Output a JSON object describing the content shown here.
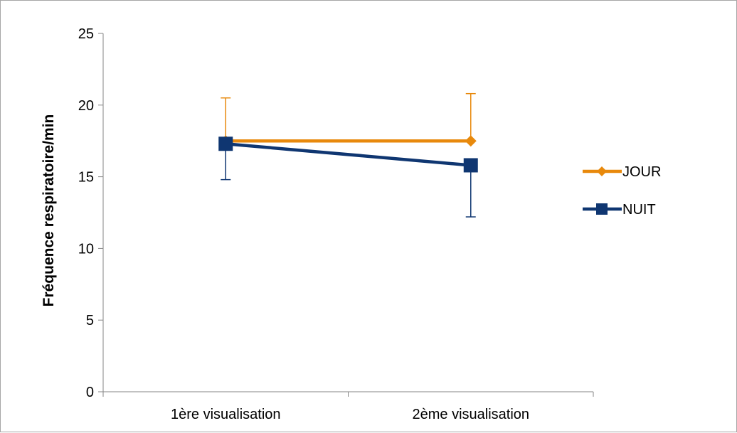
{
  "chart_data": {
    "type": "line",
    "title": "",
    "xlabel": "",
    "ylabel": "Fréquence respiratoire/min",
    "categories": [
      "1ère visualisation",
      "2ème visualisation"
    ],
    "ylim": [
      0,
      25
    ],
    "yticks": [
      0,
      5,
      10,
      15,
      20,
      25
    ],
    "grid": false,
    "legend_position": "right",
    "series": [
      {
        "name": "JOUR",
        "values": [
          17.5,
          17.5
        ],
        "error_upper": [
          20.5,
          20.8
        ],
        "color": "#e8890c",
        "marker": "diamond"
      },
      {
        "name": "NUIT",
        "values": [
          17.3,
          15.8
        ],
        "error_lower": [
          14.8,
          12.2
        ],
        "color": "#0f3671",
        "marker": "square"
      }
    ]
  }
}
